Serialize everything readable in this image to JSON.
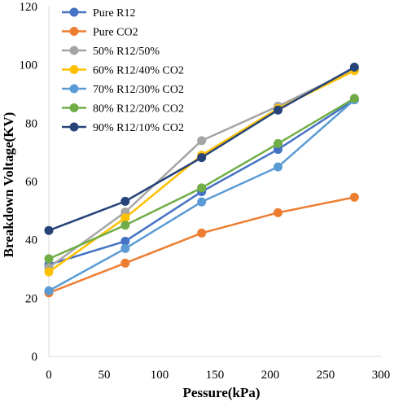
{
  "chart_data": {
    "type": "line",
    "title": "",
    "xlabel": "Pessure(kPa)",
    "ylabel": "Breakdown Voltage(KV)",
    "xlim": [
      0,
      300
    ],
    "ylim": [
      0,
      120
    ],
    "x_ticks": [
      "0",
      "50",
      "100",
      "150",
      "200",
      "250",
      "300"
    ],
    "y_ticks": [
      "0",
      "20",
      "40",
      "60",
      "80",
      "100",
      "120"
    ],
    "grid": false,
    "legend_position": "top-left",
    "x": [
      0,
      69,
      138,
      207,
      276
    ],
    "series": [
      {
        "name": "Pure R12",
        "color": "#4472C4",
        "values": [
          31.5,
          39.5,
          56.5,
          71.0,
          88.0
        ]
      },
      {
        "name": "Pure CO2",
        "color": "#ED7D31",
        "values": [
          21.8,
          32.0,
          42.3,
          49.3,
          54.6
        ]
      },
      {
        "name": "50% R12/50%",
        "color": "#A5A5A5",
        "values": [
          30.5,
          49.5,
          74.0,
          85.8,
          98.5
        ]
      },
      {
        "name": "60% R12/40% CO2",
        "color": "#FFC000",
        "values": [
          29.0,
          47.5,
          69.0,
          85.0,
          98.0
        ]
      },
      {
        "name": "70% R12/30% CO2",
        "color": "#5B9BD5",
        "values": [
          22.5,
          37.0,
          53.0,
          65.0,
          88.0
        ]
      },
      {
        "name": "80% R12/20% CO2",
        "color": "#70AD47",
        "values": [
          33.5,
          45.0,
          57.8,
          73.0,
          88.5
        ]
      },
      {
        "name": "90% R12/10% CO2",
        "color": "#264478",
        "values": [
          43.2,
          53.2,
          68.2,
          84.5,
          99.2
        ]
      }
    ]
  }
}
